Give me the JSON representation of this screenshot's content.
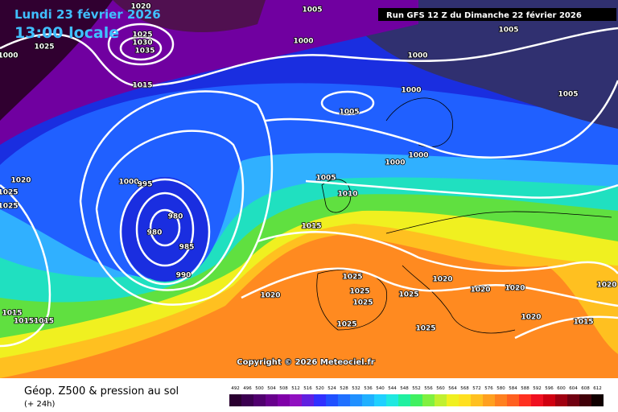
{
  "header": {
    "date": "Lundi 23 février 2026",
    "time": "13:00 locale",
    "run": "Run GFS 12 Z du Dimanche 22 février 2026"
  },
  "map": {
    "copyright": "Copyright © 2026 Meteociel.fr",
    "isobar_labels": [
      "1020",
      "1005",
      "1025",
      "1030",
      "1035",
      "1025",
      "1000",
      "1000",
      "1000",
      "1005",
      "1015",
      "1000",
      "1005",
      "1005",
      "1000",
      "1000",
      "1020",
      "1000",
      "995",
      "1025",
      "1025",
      "1005",
      "1010",
      "980",
      "980",
      "985",
      "990",
      "1015",
      "1025",
      "1025",
      "1025",
      "1025",
      "1020",
      "1020",
      "1020",
      "1020",
      "1020",
      "1025",
      "1025",
      "1020",
      "1015",
      "1015",
      "10151015"
    ]
  },
  "footer": {
    "title": "Géop. Z500 & pression au sol",
    "step": "(+ 24h)"
  },
  "legend": {
    "levels": [
      492,
      496,
      500,
      504,
      508,
      512,
      516,
      520,
      524,
      528,
      532,
      536,
      540,
      544,
      548,
      552,
      556,
      560,
      564,
      568,
      572,
      576,
      580,
      584,
      588,
      592,
      596,
      600,
      604,
      608,
      612
    ],
    "colors": [
      "#2a0030",
      "#3b0050",
      "#50006e",
      "#68008c",
      "#8000a8",
      "#9010c0",
      "#6020e0",
      "#3030ff",
      "#2050ff",
      "#2070ff",
      "#2090ff",
      "#20b0ff",
      "#20d0ff",
      "#20e8e0",
      "#20f0a0",
      "#40f060",
      "#80f040",
      "#c0f030",
      "#f0f020",
      "#ffe020",
      "#ffc020",
      "#ffa020",
      "#ff8020",
      "#ff6020",
      "#ff3020",
      "#f01020",
      "#d00010",
      "#a00010",
      "#700010",
      "#400008",
      "#100000"
    ]
  }
}
